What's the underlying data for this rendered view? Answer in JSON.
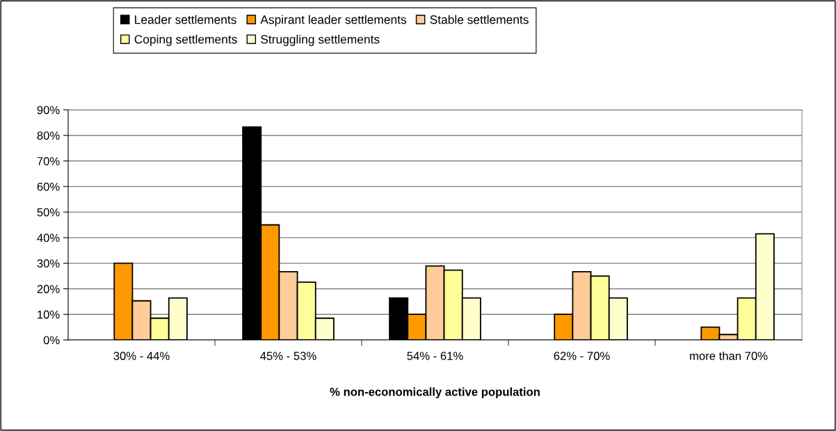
{
  "chart_data": {
    "type": "bar",
    "xlabel": "% non-economically active population",
    "categories": [
      "30% - 44%",
      "45% - 53%",
      "54% - 61%",
      "62% - 70%",
      "more than 70%"
    ],
    "series": [
      {
        "name": "Leader settlements",
        "color": "#000000",
        "values": [
          0,
          83.3,
          16.4,
          0,
          0
        ]
      },
      {
        "name": "Aspirant leader settlements",
        "color": "#ff9900",
        "values": [
          30,
          45,
          10,
          10,
          5
        ]
      },
      {
        "name": "Stable settlements",
        "color": "#ffcc99",
        "values": [
          15.3,
          26.7,
          28.9,
          26.7,
          2.1
        ]
      },
      {
        "name": "Coping settlements",
        "color": "#ffff99",
        "values": [
          8.5,
          22.6,
          27.3,
          25,
          16.4
        ]
      },
      {
        "name": "Struggling settlements",
        "color": "#ffffcc",
        "values": [
          16.4,
          8.5,
          16.4,
          16.4,
          41.5
        ]
      }
    ],
    "ylim": [
      0,
      90
    ],
    "yticks": [
      {
        "value": 0,
        "label": "0%"
      },
      {
        "value": 10,
        "label": "10%"
      },
      {
        "value": 20,
        "label": "20%"
      },
      {
        "value": 30,
        "label": "30%"
      },
      {
        "value": 40,
        "label": "40%"
      },
      {
        "value": 50,
        "label": "50%"
      },
      {
        "value": 60,
        "label": "60%"
      },
      {
        "value": 70,
        "label": "70%"
      },
      {
        "value": 80,
        "label": "80%"
      },
      {
        "value": 90,
        "label": "90%"
      }
    ],
    "grid": "y",
    "legend": "top"
  }
}
